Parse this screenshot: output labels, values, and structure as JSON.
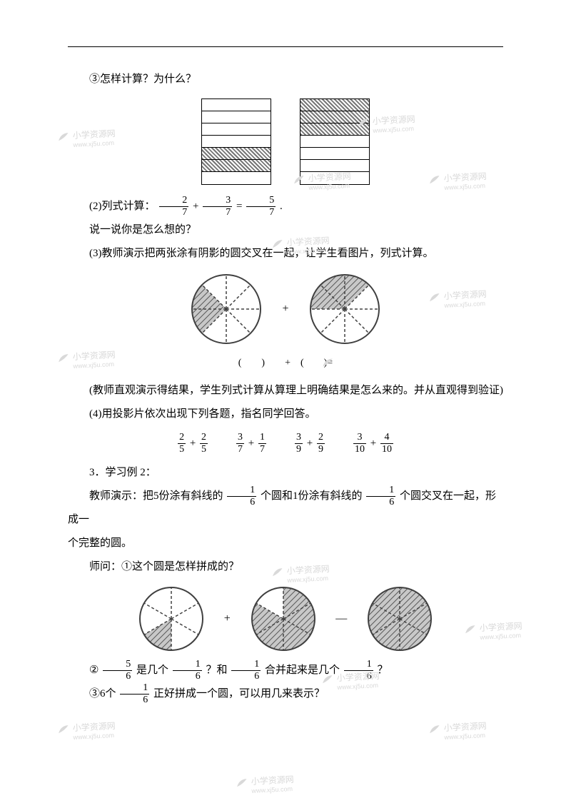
{
  "line_q3": "③怎样计算？为什么？",
  "bars": {
    "left": {
      "rows": 7,
      "shaded": [
        4,
        5
      ]
    },
    "right": {
      "rows": 7,
      "shaded": [
        0,
        1,
        2
      ]
    }
  },
  "line_p2_prefix": "(2)列式计算：",
  "eq_257": {
    "a_num": "2",
    "a_den": "7",
    "op1": "+",
    "b_num": "3",
    "b_den": "7",
    "eq": "=",
    "c_num": "5",
    "c_den": "7",
    "tail": "."
  },
  "line_explain": "说一说你是怎么想的？",
  "line_p3": "(3)教师演示把两张涂有阴影的圆交叉在一起，让学生看图片，列式计算。",
  "pies1": {
    "left": {
      "slices": 8,
      "shaded": [
        5,
        6
      ]
    },
    "right": {
      "slices": 8,
      "shaded": [
        6,
        7,
        0
      ]
    },
    "plus": "+",
    "caption": "(　　)　　+　(　　)="
  },
  "line_note": "(教师直观演示得结果，学生列式计算从算理上明确结果是怎么来的。并从直观得到验证)",
  "line_p4": "(4)用投影片依次出现下列各题，指名同学回答。",
  "frac_exercises": [
    {
      "a_num": "2",
      "a_den": "5",
      "b_num": "2",
      "b_den": "5"
    },
    {
      "a_num": "3",
      "a_den": "7",
      "b_num": "1",
      "b_den": "7"
    },
    {
      "a_num": "3",
      "a_den": "9",
      "b_num": "2",
      "b_den": "9"
    },
    {
      "a_num": "3",
      "a_den": "10",
      "b_num": "4",
      "b_den": "10"
    }
  ],
  "line_sec3": "3．学习例 2：",
  "ex2_prefix": "教师演示：把5份涂有斜线的",
  "ex2_f1": {
    "num": "1",
    "den": "6"
  },
  "ex2_mid1": "个圆和1份涂有斜线的",
  "ex2_f2": {
    "num": "1",
    "den": "6"
  },
  "ex2_tail": "个圆交叉在一起，形成一",
  "ex2_line2": "个完整的圆。",
  "line_shiwen": "师问：①这个圆是怎样拼成的？",
  "pies2": {
    "a": {
      "slices": 6,
      "shaded": [
        3
      ]
    },
    "b": {
      "slices": 6,
      "shaded": [
        0,
        1,
        2,
        3,
        4
      ]
    },
    "c": {
      "slices": 6,
      "shaded": [
        0,
        1,
        2,
        3,
        4,
        5
      ]
    },
    "plus": "+",
    "minus": "—"
  },
  "q2_prefix": "②",
  "q2_f1": {
    "num": "5",
    "den": "6"
  },
  "q2_mid1": "是几个",
  "q2_f2": {
    "num": "1",
    "den": "6"
  },
  "q2_mid2": "？和",
  "q2_f3": {
    "num": "1",
    "den": "6"
  },
  "q2_mid3": "合并起来是几个",
  "q2_f4": {
    "num": "1",
    "den": "6"
  },
  "q2_tail": "？",
  "q3_prefix": "③6个",
  "q3_f1": {
    "num": "1",
    "den": "6"
  },
  "q3_tail": "正好拼成一个圆，可以用几来表示？",
  "watermark": {
    "label": "小学资源网",
    "url": "www.xj5u.com"
  },
  "colors": {
    "text": "#000000",
    "watermark": "#d9d9d9",
    "shade_dark": "#888888",
    "shade_light": "#bdbdbd",
    "pie_stroke": "#404040"
  }
}
